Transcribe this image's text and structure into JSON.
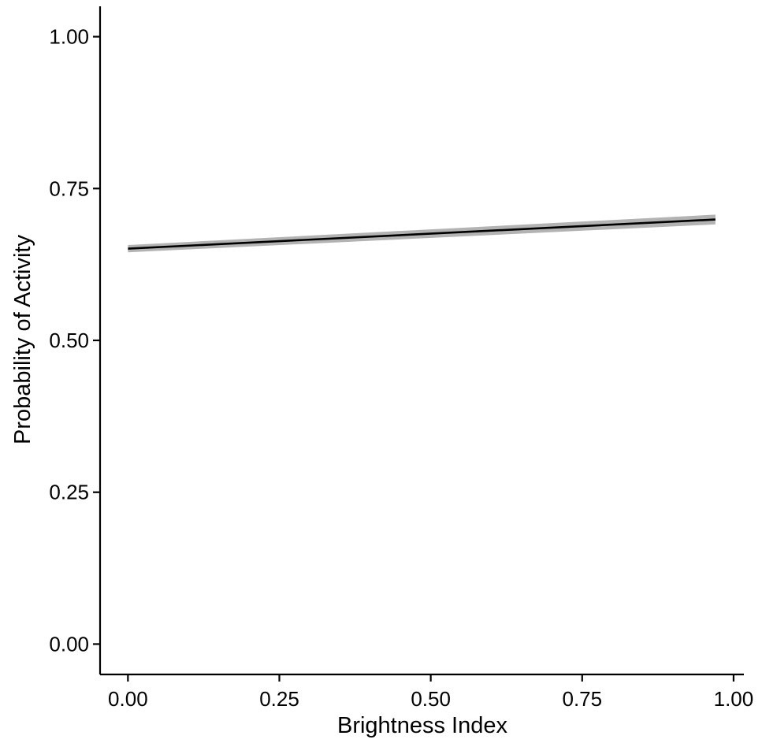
{
  "chart_data": {
    "type": "line",
    "xlabel": "Brightness Index",
    "ylabel": "Probability of Activity",
    "xlim": [
      -0.046,
      1.017
    ],
    "ylim": [
      -0.05,
      1.05
    ],
    "x_ticks": [
      0,
      0.25,
      0.5,
      0.75,
      1.0
    ],
    "x_tick_labels": [
      "0.00",
      "0.25",
      "0.50",
      "0.75",
      "1.00"
    ],
    "y_ticks": [
      0,
      0.25,
      0.5,
      0.75,
      1.0
    ],
    "y_tick_labels": [
      "0.00",
      "0.25",
      "0.50",
      "0.75",
      "1.00"
    ],
    "grid": false,
    "series": [
      {
        "x": [
          0.0,
          0.97
        ],
        "y": [
          0.651,
          0.699
        ],
        "ci_lower": [
          0.645,
          0.691
        ],
        "ci_upper": [
          0.657,
          0.707
        ],
        "color": "#000000",
        "ribbon_color": "#b3b3b3"
      }
    ]
  }
}
